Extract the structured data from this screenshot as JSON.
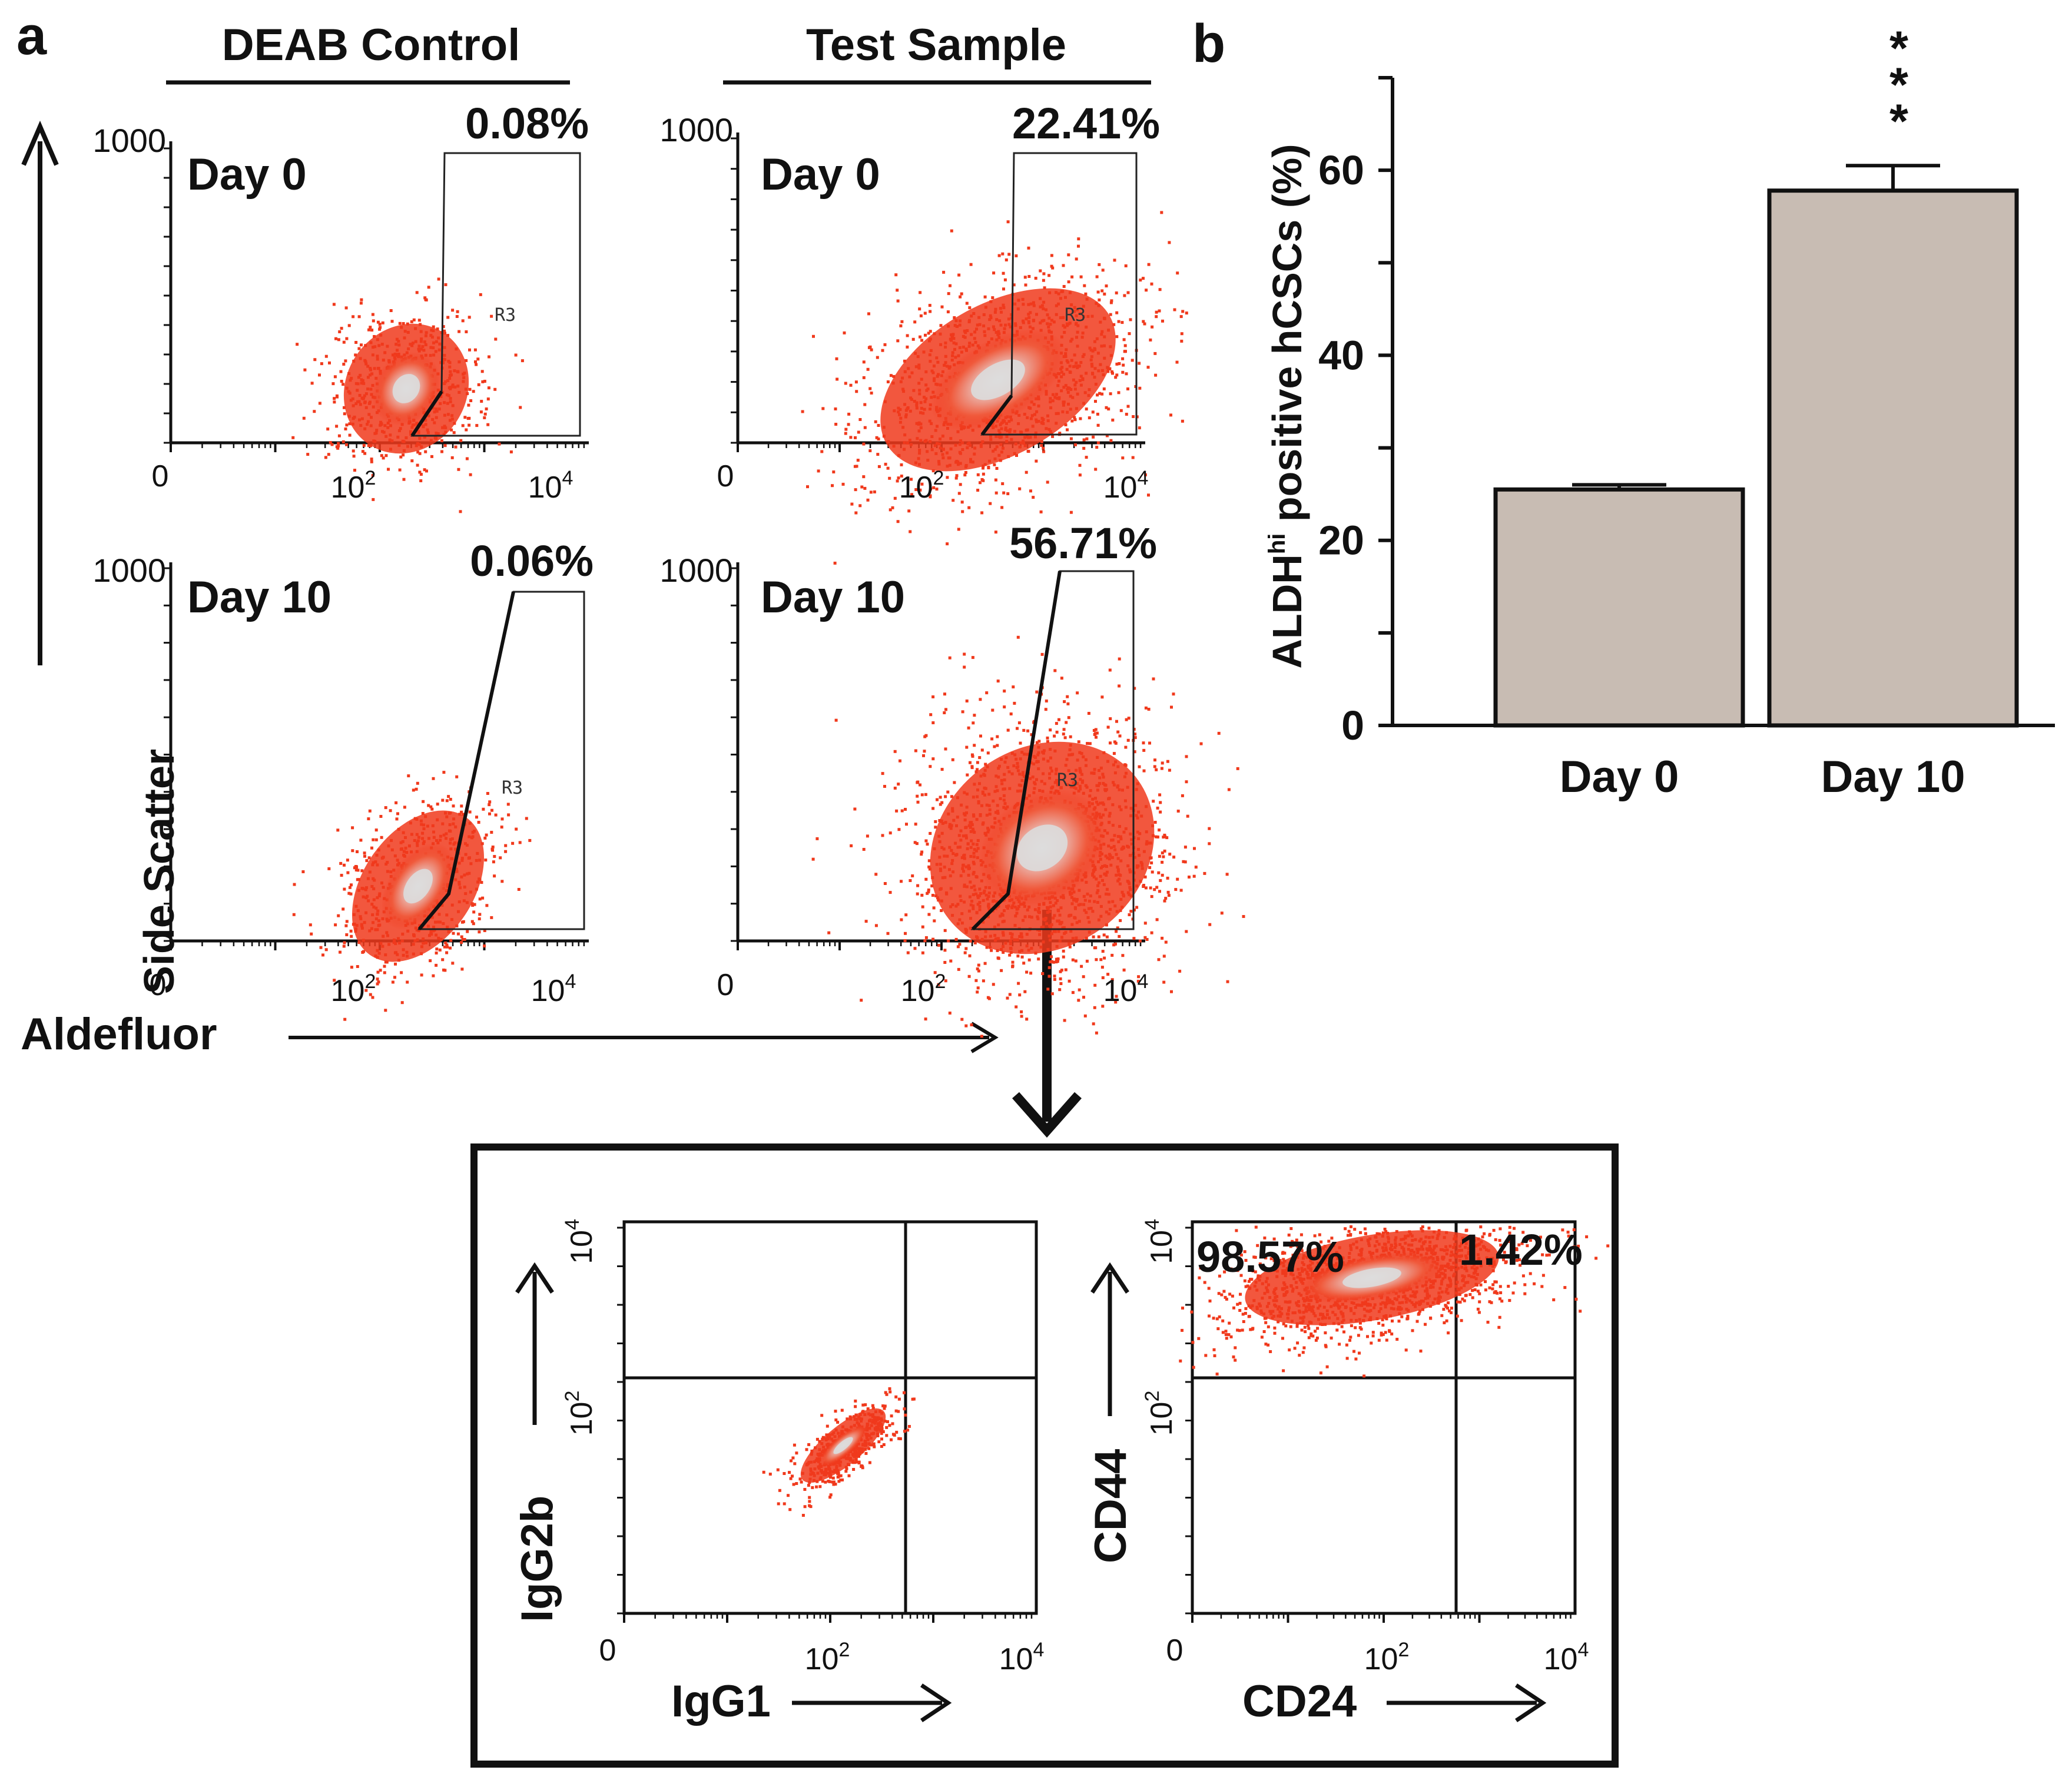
{
  "panel_a": {
    "label": "a",
    "col_titles": [
      "DEAB Control",
      "Test Sample"
    ],
    "y_axis_label": "Side Scatter",
    "x_axis_label": "Aldefluor",
    "gate_label": "R3",
    "plots": [
      {
        "id": "deab-day0",
        "day": "Day 0",
        "percent": "0.08%",
        "ymax": "1000"
      },
      {
        "id": "test-day0",
        "day": "Day 0",
        "percent": "22.41%",
        "ymax": "1000"
      },
      {
        "id": "deab-day10",
        "day": "Day 10",
        "percent": "0.06%",
        "ymax": "1000"
      },
      {
        "id": "test-day10",
        "day": "Day 10",
        "percent": "56.71%",
        "ymax": "1000"
      }
    ],
    "x_ticks": {
      "zero": "0",
      "mid_base": "10",
      "mid_exp": "2",
      "high_base": "10",
      "high_exp": "4"
    }
  },
  "inset": {
    "plots": [
      {
        "id": "isotype",
        "xlabel": "IgG1",
        "ylabel": "IgG2b"
      },
      {
        "id": "cd44-cd24",
        "xlabel": "CD24",
        "ylabel": "CD44",
        "q_left": "98.57%",
        "q_right": "1.42%"
      }
    ],
    "ticks": {
      "zero": "0",
      "base": "10",
      "e2": "2",
      "e4": "4"
    }
  },
  "chart_data": {
    "type": "bar",
    "panel_label": "b",
    "categories": [
      "Day 0",
      "Day 10"
    ],
    "values": [
      25.5,
      57.8
    ],
    "errors": [
      0.5,
      2.7
    ],
    "ylabel_main": "ALDH",
    "ylabel_sup": "hi",
    "ylabel_rest": " positive hCSCs (%)",
    "ylim": [
      0,
      70
    ],
    "yticks": [
      0,
      20,
      40,
      60
    ],
    "significance": [
      "",
      "***"
    ],
    "bar_color": "#c8bcb3"
  },
  "colors": {
    "scatter_red": "#f0391c",
    "scatter_core": "#dcdcdc"
  }
}
